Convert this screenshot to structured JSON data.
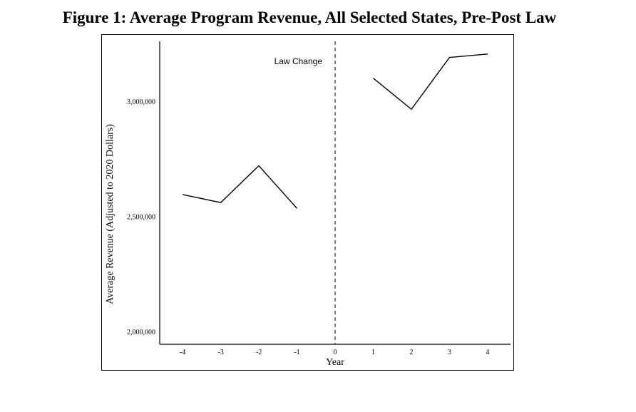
{
  "figure": {
    "title": "Figure 1: Average Program Revenue, All Selected States, Pre-Post Law"
  },
  "chart_data": {
    "type": "line",
    "title": "Figure 1: Average Program Revenue, All Selected States, Pre-Post Law",
    "xlabel": "Year",
    "ylabel": "Average Revenue (Adjusted to 2020 Dollars)",
    "x_ticks": [
      "-4",
      "-3",
      "-2",
      "-1",
      "0",
      "1",
      "2",
      "3",
      "4"
    ],
    "y_ticks": [
      {
        "value": 2000000,
        "label": "2,000,000"
      },
      {
        "value": 2500000,
        "label": "2,500,000"
      },
      {
        "value": 3000000,
        "label": "3,000,000"
      }
    ],
    "xlim": [
      -4.6,
      4.6
    ],
    "ylim": [
      1945000,
      3260000
    ],
    "series": [
      {
        "segment": "pre",
        "x": [
          -4,
          -3,
          -2,
          -1
        ],
        "y": [
          2595000,
          2560000,
          2720000,
          2535000
        ]
      },
      {
        "segment": "post",
        "x": [
          1,
          2,
          3,
          4
        ],
        "y": [
          3100000,
          2965000,
          3190000,
          3205000
        ]
      }
    ],
    "annotations": [
      {
        "text": "Law Change",
        "x": 0,
        "line_style": "dashed"
      }
    ],
    "grid": false,
    "line_color": "#000000"
  }
}
